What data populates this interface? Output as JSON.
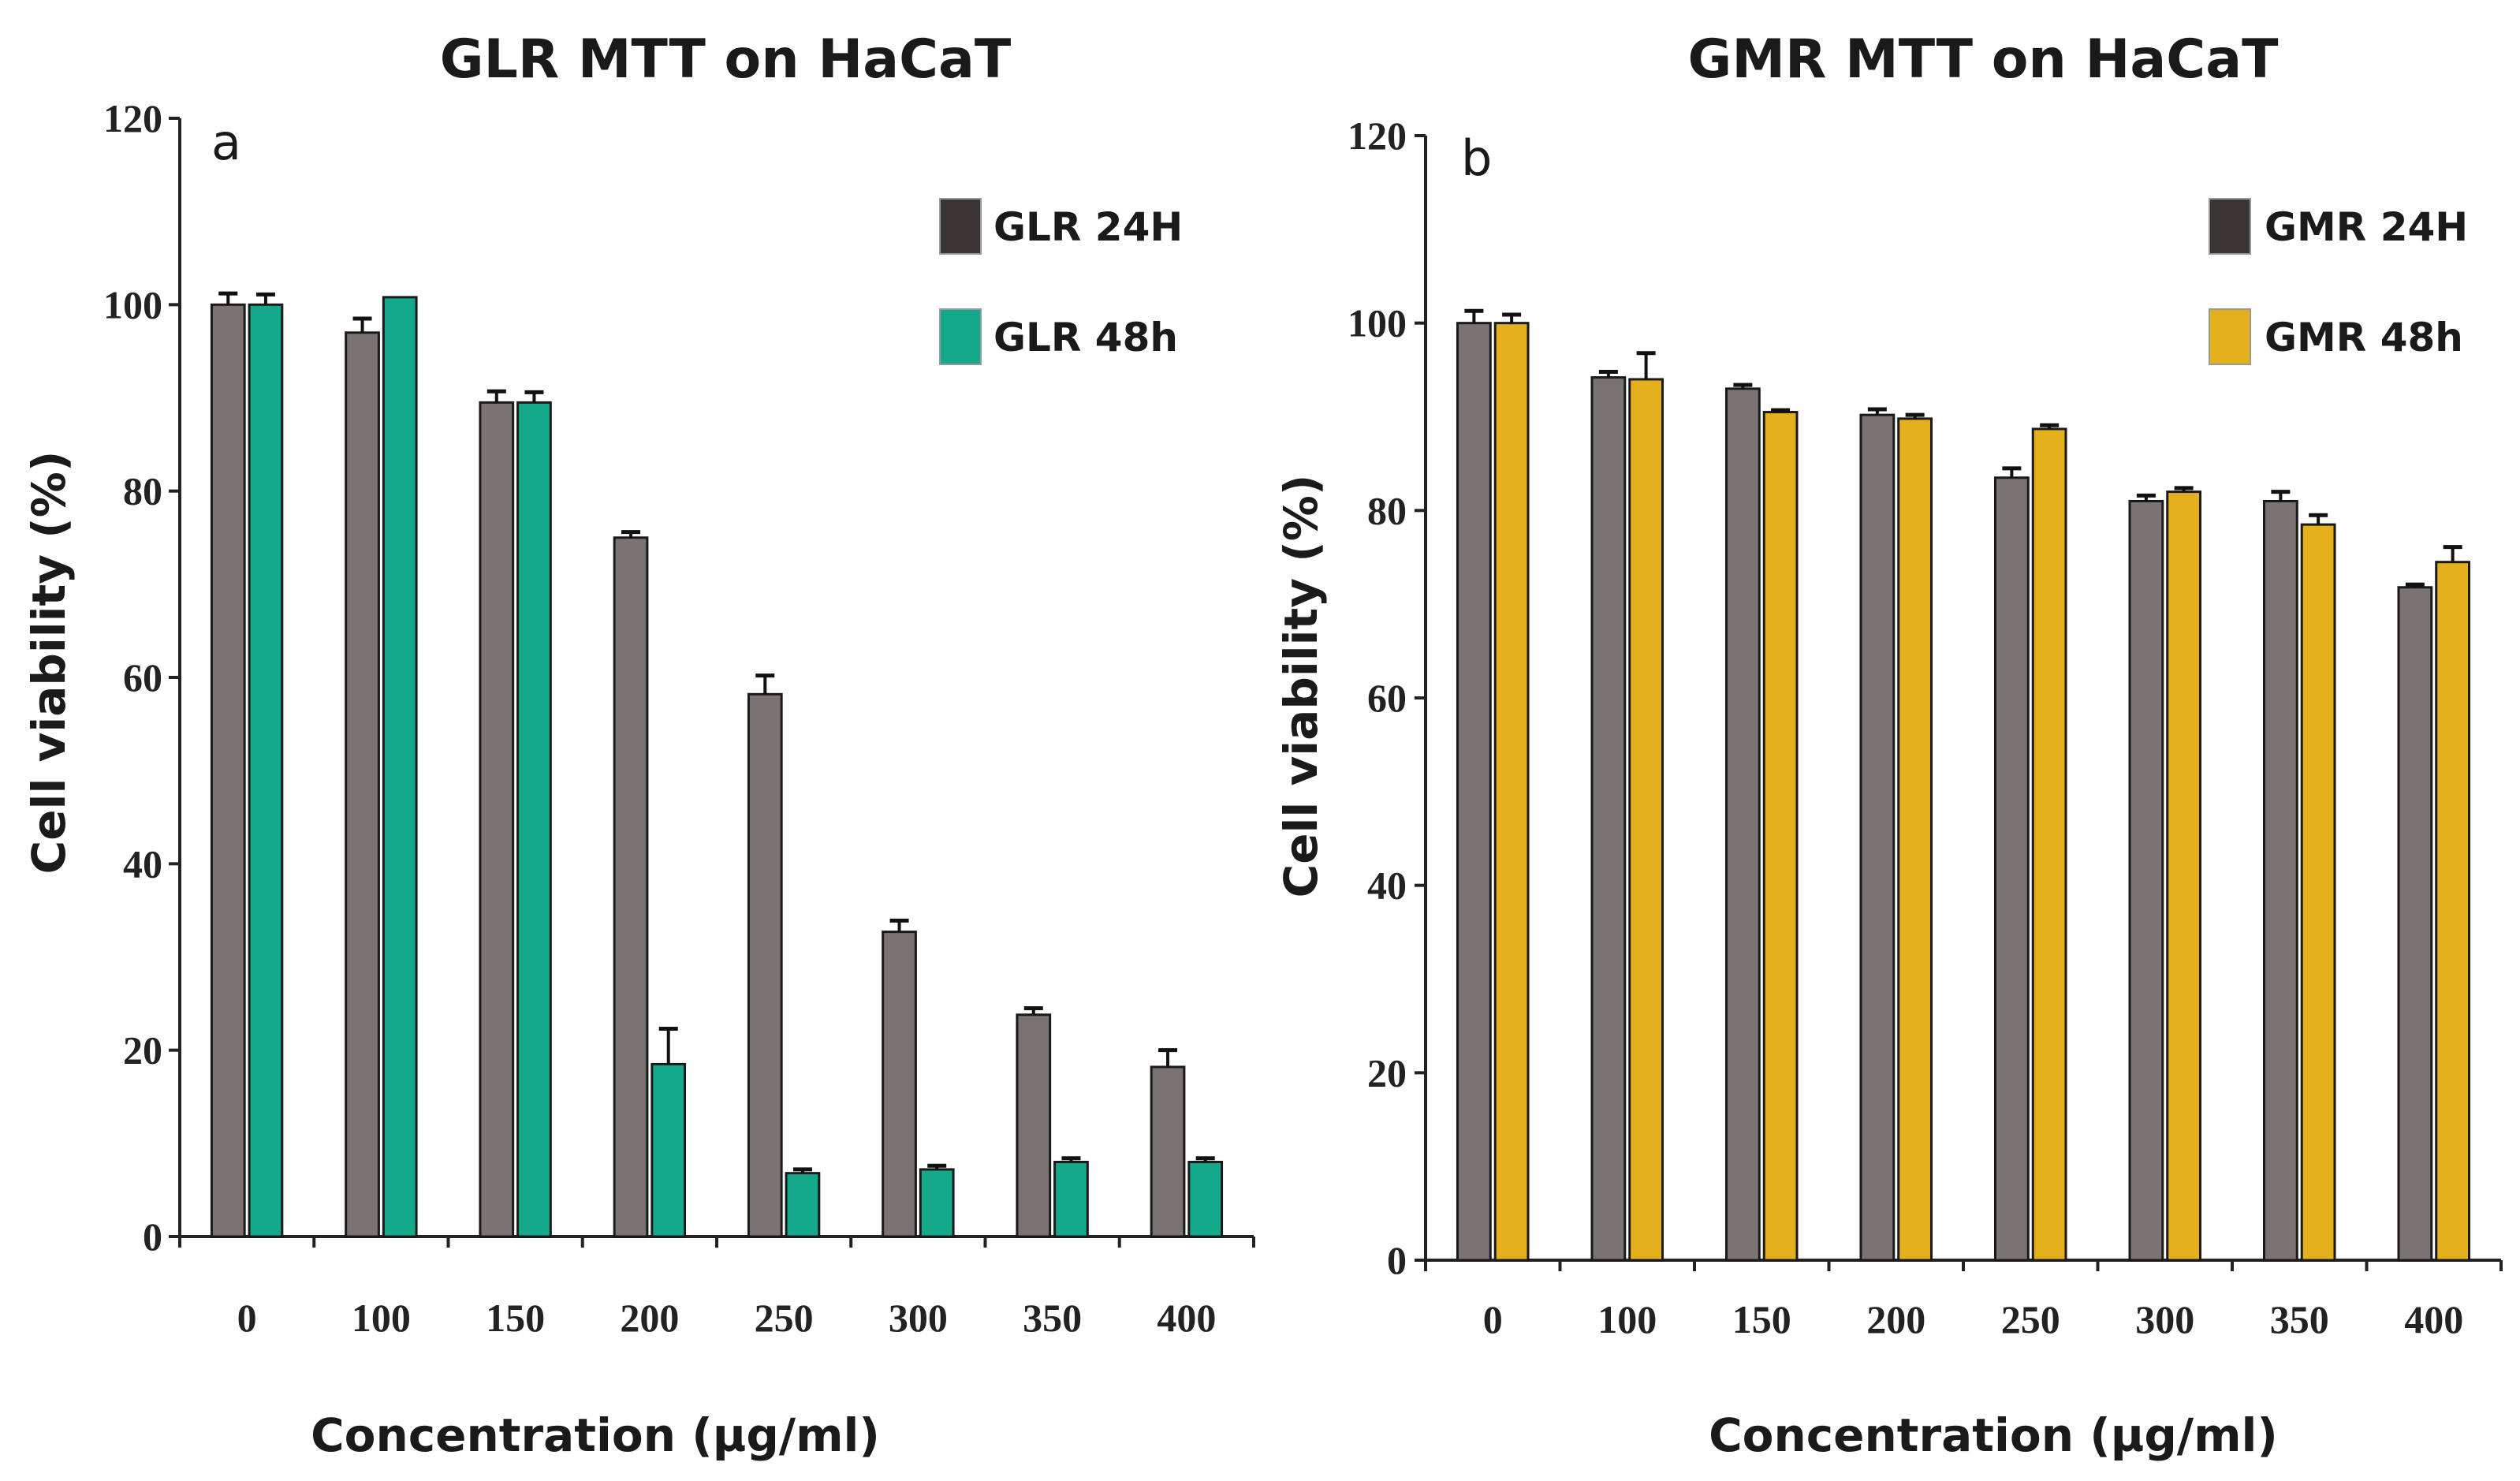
{
  "chart_data": [
    {
      "type": "bar",
      "panel_letter": "a",
      "title": "GLR MTT on HaCaT",
      "xlabel": "Concentration (µg/ml)",
      "ylabel": "Cell viability (%)",
      "ylim": [
        0,
        120
      ],
      "yticks": [
        0,
        20,
        40,
        60,
        80,
        100,
        120
      ],
      "categories": [
        "0",
        "100",
        "150",
        "200",
        "250",
        "300",
        "350",
        "400"
      ],
      "grid": false,
      "legend_position": "top-right",
      "series": [
        {
          "name": "GLR 24H",
          "color": "#7b7272",
          "values": [
            100,
            97,
            89.5,
            75,
            58.2,
            32.7,
            23.8,
            18.2
          ],
          "errors": [
            1.2,
            1.5,
            1.2,
            0.6,
            2.0,
            1.2,
            0.7,
            1.8
          ]
        },
        {
          "name": "GLR 48h",
          "color": "#14a98b",
          "values": [
            100,
            100.8,
            89.5,
            18.5,
            6.8,
            7.2,
            8.0,
            8.0
          ],
          "errors": [
            1.1,
            0,
            1.1,
            3.8,
            0.4,
            0.4,
            0.4,
            0.4
          ]
        }
      ]
    },
    {
      "type": "bar",
      "panel_letter": "b",
      "title": "GMR MTT on HaCaT",
      "xlabel": "Concentration (µg/ml)",
      "ylabel": "Cell viability (%)",
      "ylim": [
        0,
        120
      ],
      "yticks": [
        0,
        20,
        40,
        60,
        80,
        100,
        120
      ],
      "categories": [
        "0",
        "100",
        "150",
        "200",
        "250",
        "300",
        "350",
        "400"
      ],
      "grid": false,
      "legend_position": "top-right",
      "series": [
        {
          "name": "GMR 24H",
          "color": "#7b7272",
          "values": [
            100,
            94.2,
            93,
            90.2,
            83.5,
            81,
            81,
            71.8
          ],
          "errors": [
            1.3,
            0.6,
            0.4,
            0.6,
            1.0,
            0.6,
            1.0,
            0.3
          ]
        },
        {
          "name": "GMR 48h",
          "color": "#e5b01e",
          "values": [
            100,
            94,
            90.5,
            89.8,
            88.7,
            82,
            78.5,
            74.5
          ],
          "errors": [
            0.9,
            2.8,
            0.2,
            0.4,
            0.4,
            0.4,
            1.0,
            1.6
          ]
        }
      ]
    }
  ]
}
